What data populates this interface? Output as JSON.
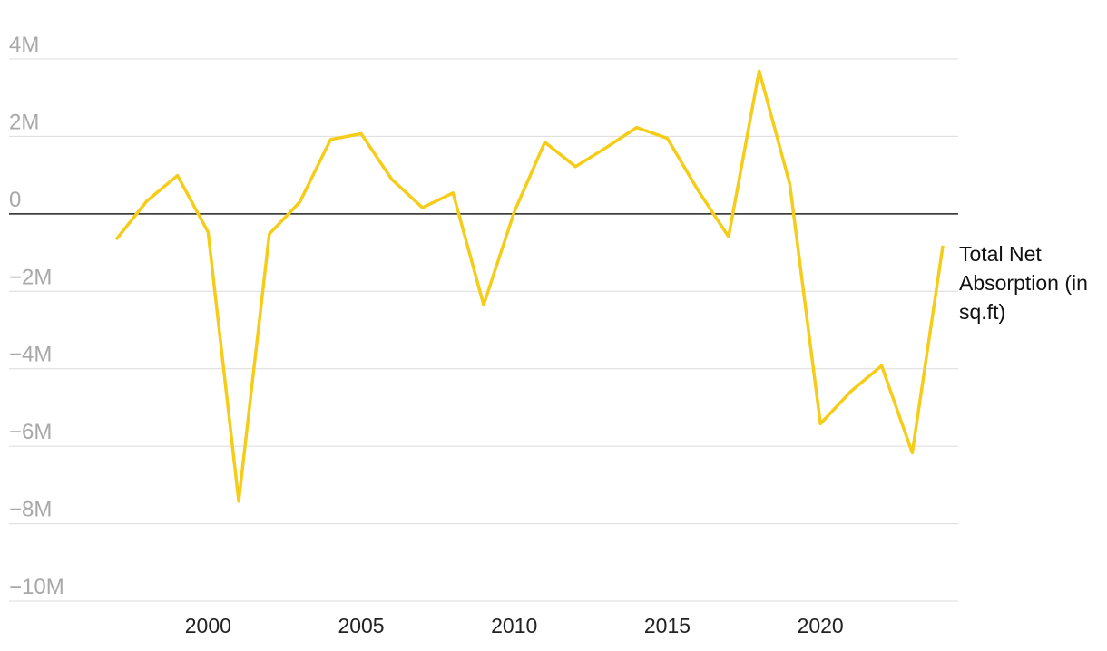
{
  "chart_data": {
    "type": "line",
    "x": [
      1997,
      1998,
      1999,
      2000,
      2001,
      2002,
      2003,
      2004,
      2005,
      2006,
      2007,
      2008,
      2009,
      2010,
      2011,
      2012,
      2013,
      2014,
      2015,
      2016,
      2017,
      2018,
      2019,
      2020,
      2021,
      2022,
      2023,
      2024
    ],
    "series": [
      {
        "name": "Total Net Absorption (in sq.ft)",
        "color": "#f5cd19",
        "values": [
          -660000,
          330000,
          990000,
          -470000,
          -7420000,
          -520000,
          310000,
          1920000,
          2070000,
          890000,
          160000,
          540000,
          -2350000,
          50000,
          1850000,
          1220000,
          1710000,
          2230000,
          1950000,
          610000,
          -590000,
          3690000,
          770000,
          -5420000,
          -4580000,
          -3920000,
          -6170000,
          -820000
        ]
      }
    ],
    "xlim": [
      1993.5,
      2024.5
    ],
    "xticks": [
      2000,
      2005,
      2010,
      2015,
      2020
    ],
    "ylim": [
      -10000000,
      4000000
    ],
    "yticks": [
      {
        "value": 4000000,
        "label": "4M"
      },
      {
        "value": 2000000,
        "label": "2M"
      },
      0,
      {
        "value": -2000000,
        "label": "−2M"
      },
      {
        "value": -4000000,
        "label": "−4M"
      },
      {
        "value": -6000000,
        "label": "−6M"
      },
      {
        "value": -8000000,
        "label": "−8M"
      },
      {
        "value": -10000000,
        "label": "−10M"
      }
    ],
    "grid": true
  }
}
